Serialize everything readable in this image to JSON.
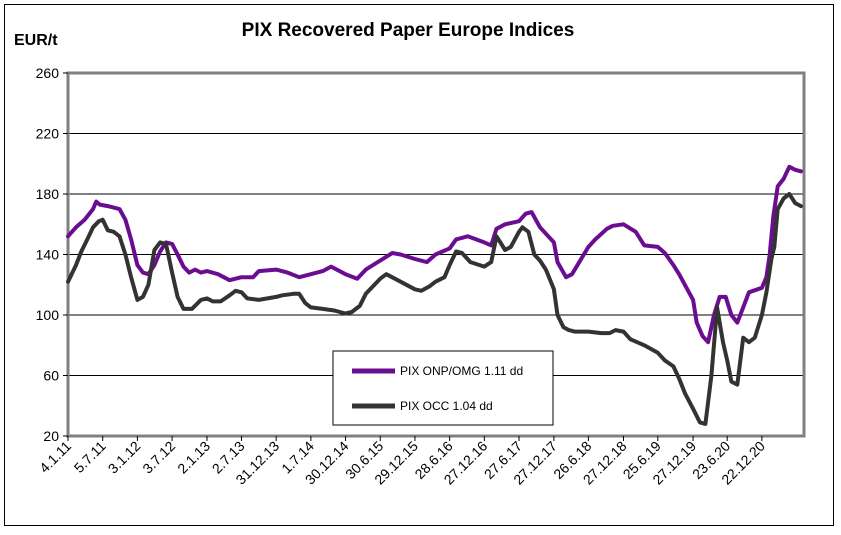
{
  "chart_data": {
    "type": "line",
    "title": "PIX Recovered Paper Europe Indices",
    "ylabel": "EUR/t",
    "xlabel": "",
    "ylim": [
      20,
      260
    ],
    "yticks": [
      "20",
      "60",
      "100",
      "140",
      "180",
      "220",
      "260"
    ],
    "xlim": [
      "2011-01-04",
      "2021-07-31"
    ],
    "xtick_labels": [
      "4.1.11",
      "5.7.11",
      "3.1.12",
      "3.7.12",
      "2.1.13",
      "2.7.13",
      "31.12.13",
      "1.7.14",
      "30.12.14",
      "30.6.15",
      "29.12.15",
      "28.6.16",
      "27.12.16",
      "27.6.17",
      "27.12.17",
      "26.6.18",
      "27.12.18",
      "25.6.19",
      "27.12.19",
      "23.6.20",
      "22.12.20"
    ],
    "xtick_dates": [
      "2011-01-04",
      "2011-07-05",
      "2012-01-03",
      "2012-07-03",
      "2013-01-02",
      "2013-07-02",
      "2013-12-31",
      "2014-07-01",
      "2014-12-30",
      "2015-06-30",
      "2015-12-29",
      "2016-06-28",
      "2016-12-27",
      "2017-06-27",
      "2017-12-27",
      "2018-06-26",
      "2018-12-27",
      "2019-06-25",
      "2019-12-27",
      "2020-06-23",
      "2020-12-22"
    ],
    "grid": true,
    "legend_placement": "bottom-center",
    "series": [
      {
        "name": "PIX ONP/OMG 1.11 dd",
        "color": "#6a0d91",
        "points": [
          [
            "2011-01-04",
            152
          ],
          [
            "2011-02-15",
            158
          ],
          [
            "2011-04-01",
            163
          ],
          [
            "2011-05-15",
            170
          ],
          [
            "2011-06-01",
            175
          ],
          [
            "2011-06-20",
            173
          ],
          [
            "2011-08-01",
            172
          ],
          [
            "2011-10-01",
            170
          ],
          [
            "2011-11-01",
            163
          ],
          [
            "2011-12-01",
            150
          ],
          [
            "2012-01-03",
            133
          ],
          [
            "2012-02-01",
            128
          ],
          [
            "2012-03-01",
            127
          ],
          [
            "2012-04-01",
            133
          ],
          [
            "2012-05-01",
            142
          ],
          [
            "2012-06-01",
            148
          ],
          [
            "2012-07-03",
            147
          ],
          [
            "2012-08-01",
            140
          ],
          [
            "2012-09-01",
            132
          ],
          [
            "2012-10-01",
            128
          ],
          [
            "2012-11-01",
            130
          ],
          [
            "2012-12-01",
            128
          ],
          [
            "2013-01-02",
            129
          ],
          [
            "2013-03-01",
            127
          ],
          [
            "2013-05-01",
            123
          ],
          [
            "2013-07-02",
            125
          ],
          [
            "2013-09-01",
            125
          ],
          [
            "2013-10-01",
            129
          ],
          [
            "2013-12-31",
            130
          ],
          [
            "2014-03-01",
            128
          ],
          [
            "2014-05-01",
            125
          ],
          [
            "2014-07-01",
            127
          ],
          [
            "2014-09-01",
            129
          ],
          [
            "2014-10-15",
            132
          ],
          [
            "2014-12-30",
            127
          ],
          [
            "2015-03-01",
            124
          ],
          [
            "2015-04-15",
            130
          ],
          [
            "2015-06-30",
            136
          ],
          [
            "2015-09-01",
            141
          ],
          [
            "2015-10-15",
            140
          ],
          [
            "2015-12-29",
            137
          ],
          [
            "2016-03-01",
            135
          ],
          [
            "2016-04-15",
            140
          ],
          [
            "2016-06-28",
            144
          ],
          [
            "2016-08-01",
            150
          ],
          [
            "2016-10-01",
            152
          ],
          [
            "2016-12-27",
            148
          ],
          [
            "2017-02-01",
            146
          ],
          [
            "2017-03-01",
            157
          ],
          [
            "2017-04-15",
            160
          ],
          [
            "2017-06-27",
            162
          ],
          [
            "2017-08-01",
            167
          ],
          [
            "2017-09-01",
            168
          ],
          [
            "2017-10-15",
            158
          ],
          [
            "2017-12-27",
            148
          ],
          [
            "2018-01-15",
            135
          ],
          [
            "2018-03-01",
            125
          ],
          [
            "2018-04-01",
            127
          ],
          [
            "2018-06-26",
            145
          ],
          [
            "2018-08-01",
            150
          ],
          [
            "2018-10-01",
            157
          ],
          [
            "2018-11-01",
            159
          ],
          [
            "2018-12-27",
            160
          ],
          [
            "2019-03-01",
            155
          ],
          [
            "2019-04-15",
            146
          ],
          [
            "2019-06-25",
            145
          ],
          [
            "2019-08-01",
            141
          ],
          [
            "2019-09-15",
            133
          ],
          [
            "2019-10-15",
            127
          ],
          [
            "2019-12-27",
            110
          ],
          [
            "2020-01-15",
            95
          ],
          [
            "2020-02-15",
            86
          ],
          [
            "2020-03-15",
            82
          ],
          [
            "2020-04-15",
            100
          ],
          [
            "2020-05-15",
            112
          ],
          [
            "2020-06-15",
            112
          ],
          [
            "2020-07-15",
            100
          ],
          [
            "2020-08-15",
            95
          ],
          [
            "2020-09-15",
            105
          ],
          [
            "2020-10-15",
            115
          ],
          [
            "2020-12-22",
            118
          ],
          [
            "2021-01-15",
            125
          ],
          [
            "2021-02-01",
            140
          ],
          [
            "2021-02-20",
            165
          ],
          [
            "2021-03-15",
            185
          ],
          [
            "2021-04-15",
            190
          ],
          [
            "2021-05-15",
            198
          ],
          [
            "2021-06-15",
            196
          ],
          [
            "2021-07-15",
            195
          ]
        ]
      },
      {
        "name": "PIX OCC 1.04 dd",
        "color": "#333333",
        "points": [
          [
            "2011-01-04",
            122
          ],
          [
            "2011-02-15",
            133
          ],
          [
            "2011-03-15",
            142
          ],
          [
            "2011-04-15",
            150
          ],
          [
            "2011-05-15",
            158
          ],
          [
            "2011-06-15",
            162
          ],
          [
            "2011-07-05",
            163
          ],
          [
            "2011-08-01",
            156
          ],
          [
            "2011-09-01",
            155
          ],
          [
            "2011-10-01",
            152
          ],
          [
            "2011-11-01",
            140
          ],
          [
            "2011-12-01",
            125
          ],
          [
            "2012-01-03",
            110
          ],
          [
            "2012-02-01",
            112
          ],
          [
            "2012-03-01",
            120
          ],
          [
            "2012-04-01",
            143
          ],
          [
            "2012-05-01",
            148
          ],
          [
            "2012-06-01",
            147
          ],
          [
            "2012-07-03",
            128
          ],
          [
            "2012-08-01",
            112
          ],
          [
            "2012-09-01",
            104
          ],
          [
            "2012-10-15",
            104
          ],
          [
            "2012-12-01",
            110
          ],
          [
            "2013-01-02",
            111
          ],
          [
            "2013-02-01",
            109
          ],
          [
            "2013-03-15",
            109
          ],
          [
            "2013-05-01",
            113
          ],
          [
            "2013-06-01",
            116
          ],
          [
            "2013-07-02",
            115
          ],
          [
            "2013-08-01",
            111
          ],
          [
            "2013-10-01",
            110
          ],
          [
            "2013-12-31",
            112
          ],
          [
            "2014-02-01",
            113
          ],
          [
            "2014-04-01",
            114
          ],
          [
            "2014-05-01",
            114
          ],
          [
            "2014-06-01",
            108
          ],
          [
            "2014-07-01",
            105
          ],
          [
            "2014-09-01",
            104
          ],
          [
            "2014-11-01",
            103
          ],
          [
            "2014-12-30",
            101
          ],
          [
            "2015-02-01",
            102
          ],
          [
            "2015-03-15",
            106
          ],
          [
            "2015-04-15",
            114
          ],
          [
            "2015-06-30",
            124
          ],
          [
            "2015-08-01",
            127
          ],
          [
            "2015-09-15",
            124
          ],
          [
            "2015-12-29",
            117
          ],
          [
            "2016-02-01",
            116
          ],
          [
            "2016-03-15",
            119
          ],
          [
            "2016-04-15",
            122
          ],
          [
            "2016-06-01",
            125
          ],
          [
            "2016-06-28",
            133
          ],
          [
            "2016-08-01",
            142
          ],
          [
            "2016-09-01",
            141
          ],
          [
            "2016-10-15",
            135
          ],
          [
            "2016-12-27",
            132
          ],
          [
            "2017-02-01",
            135
          ],
          [
            "2017-03-01",
            152
          ],
          [
            "2017-04-15",
            143
          ],
          [
            "2017-05-15",
            145
          ],
          [
            "2017-06-27",
            155
          ],
          [
            "2017-07-15",
            158
          ],
          [
            "2017-08-15",
            155
          ],
          [
            "2017-09-15",
            140
          ],
          [
            "2017-10-15",
            136
          ],
          [
            "2017-11-15",
            130
          ],
          [
            "2017-12-27",
            117
          ],
          [
            "2018-01-15",
            100
          ],
          [
            "2018-02-15",
            92
          ],
          [
            "2018-03-15",
            90
          ],
          [
            "2018-04-15",
            89
          ],
          [
            "2018-06-26",
            89
          ],
          [
            "2018-09-01",
            88
          ],
          [
            "2018-10-15",
            88
          ],
          [
            "2018-11-15",
            90
          ],
          [
            "2018-12-27",
            89
          ],
          [
            "2019-02-01",
            84
          ],
          [
            "2019-04-15",
            80
          ],
          [
            "2019-06-25",
            75
          ],
          [
            "2019-08-01",
            70
          ],
          [
            "2019-09-15",
            66
          ],
          [
            "2019-10-15",
            58
          ],
          [
            "2019-11-15",
            48
          ],
          [
            "2019-12-27",
            38
          ],
          [
            "2020-02-01",
            29
          ],
          [
            "2020-03-01",
            28
          ],
          [
            "2020-04-01",
            60
          ],
          [
            "2020-05-01",
            105
          ],
          [
            "2020-06-01",
            82
          ],
          [
            "2020-06-23",
            70
          ],
          [
            "2020-07-15",
            56
          ],
          [
            "2020-08-15",
            54
          ],
          [
            "2020-09-15",
            85
          ],
          [
            "2020-10-15",
            82
          ],
          [
            "2020-11-15",
            85
          ],
          [
            "2020-12-22",
            100
          ],
          [
            "2021-01-15",
            115
          ],
          [
            "2021-02-10",
            137
          ],
          [
            "2021-02-25",
            145
          ],
          [
            "2021-03-15",
            170
          ],
          [
            "2021-04-15",
            177
          ],
          [
            "2021-05-15",
            180
          ],
          [
            "2021-06-15",
            174
          ],
          [
            "2021-07-15",
            172
          ]
        ]
      }
    ]
  }
}
